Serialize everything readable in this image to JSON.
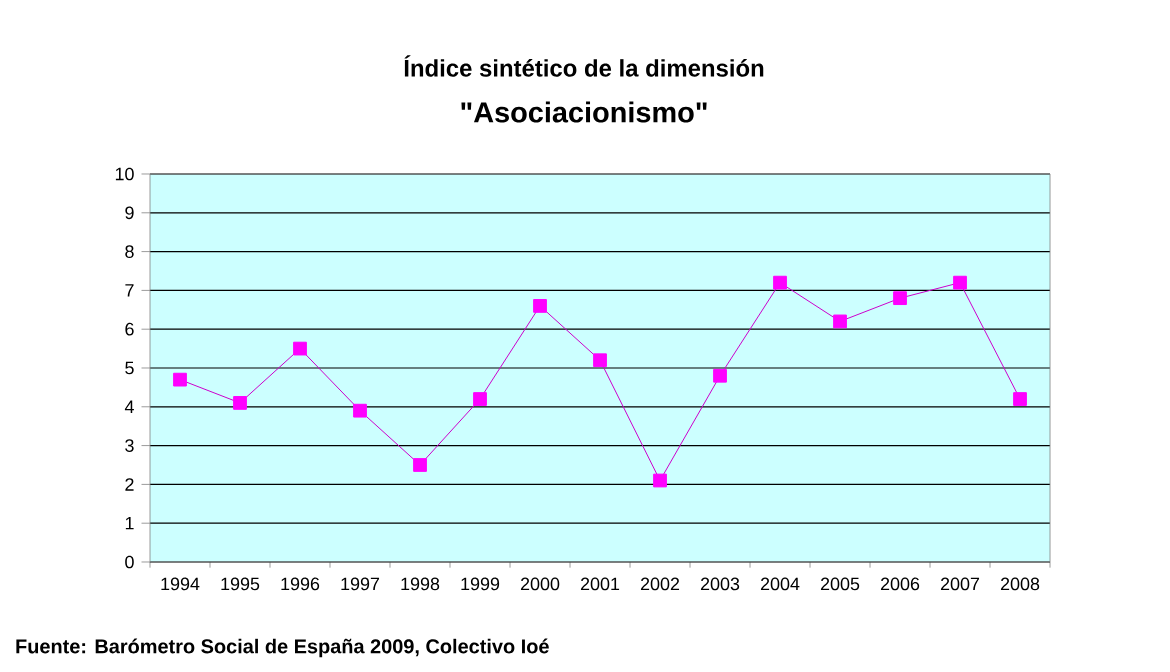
{
  "chart_data": {
    "type": "line",
    "title": "Índice sintético de la dimensión",
    "subtitle": "\"Asociacionismo\"",
    "categories": [
      "1994",
      "1995",
      "1996",
      "1997",
      "1998",
      "1999",
      "2000",
      "2001",
      "2002",
      "2003",
      "2004",
      "2005",
      "2006",
      "2007",
      "2008"
    ],
    "series": [
      {
        "color": "#ff00ff",
        "values": [
          4.7,
          4.1,
          5.5,
          3.9,
          2.5,
          4.2,
          6.6,
          5.2,
          2.1,
          4.8,
          7.2,
          6.2,
          6.8,
          7.2,
          4.2
        ]
      }
    ],
    "ylim": [
      0,
      10
    ],
    "yticks": [
      0,
      1,
      2,
      3,
      4,
      5,
      6,
      7,
      8,
      9,
      10
    ],
    "grid": "y",
    "marker": "square",
    "line_style": "solid",
    "annotations": [
      "Fuente: Barómetro Social de España 2009, Colectivo Ioé"
    ]
  }
}
